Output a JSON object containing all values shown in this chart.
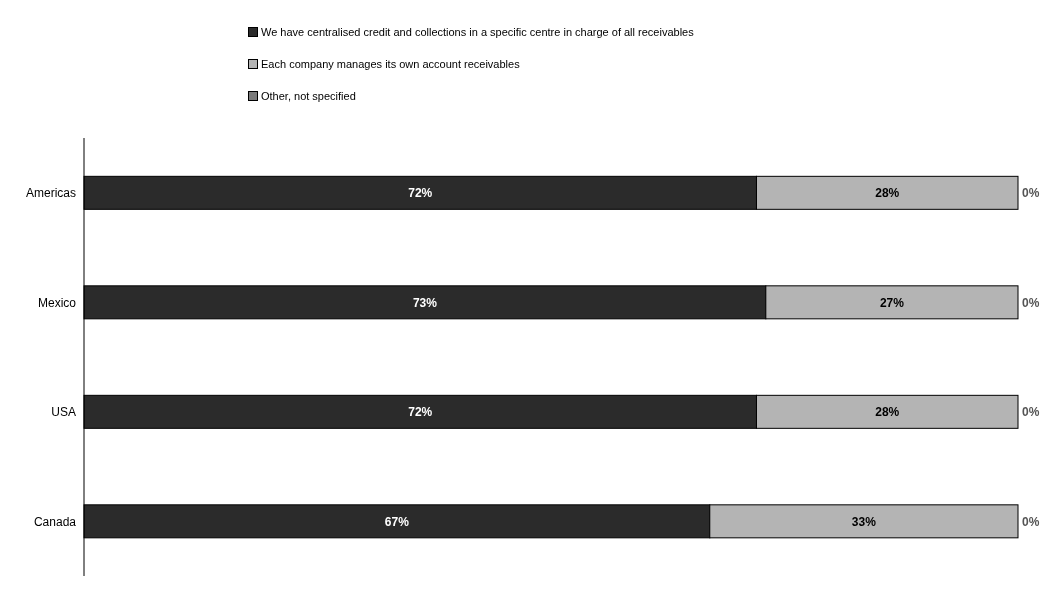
{
  "chart_data": {
    "type": "bar",
    "orientation": "horizontal",
    "stacked": true,
    "legend": "top",
    "categories": [
      "Americas",
      "Mexico",
      "USA",
      "Canada"
    ],
    "series": [
      {
        "name": "We have centralised credit and collections in a specific centre in charge of all receivables",
        "color": "#2b2b2b",
        "values": [
          72,
          73,
          72,
          67
        ],
        "value_labels": [
          "72%",
          "73%",
          "72%",
          "67%"
        ]
      },
      {
        "name": "Each company manages its own account receivables",
        "color": "#b4b4b4",
        "values": [
          28,
          27,
          28,
          33
        ],
        "value_labels": [
          "28%",
          "27%",
          "28%",
          "33%"
        ]
      },
      {
        "name": "Other, not specified",
        "color": "#7a7a7a",
        "values": [
          0,
          0,
          0,
          0
        ],
        "value_labels": [
          "0%",
          "0%",
          "0%",
          "0%"
        ]
      }
    ]
  }
}
